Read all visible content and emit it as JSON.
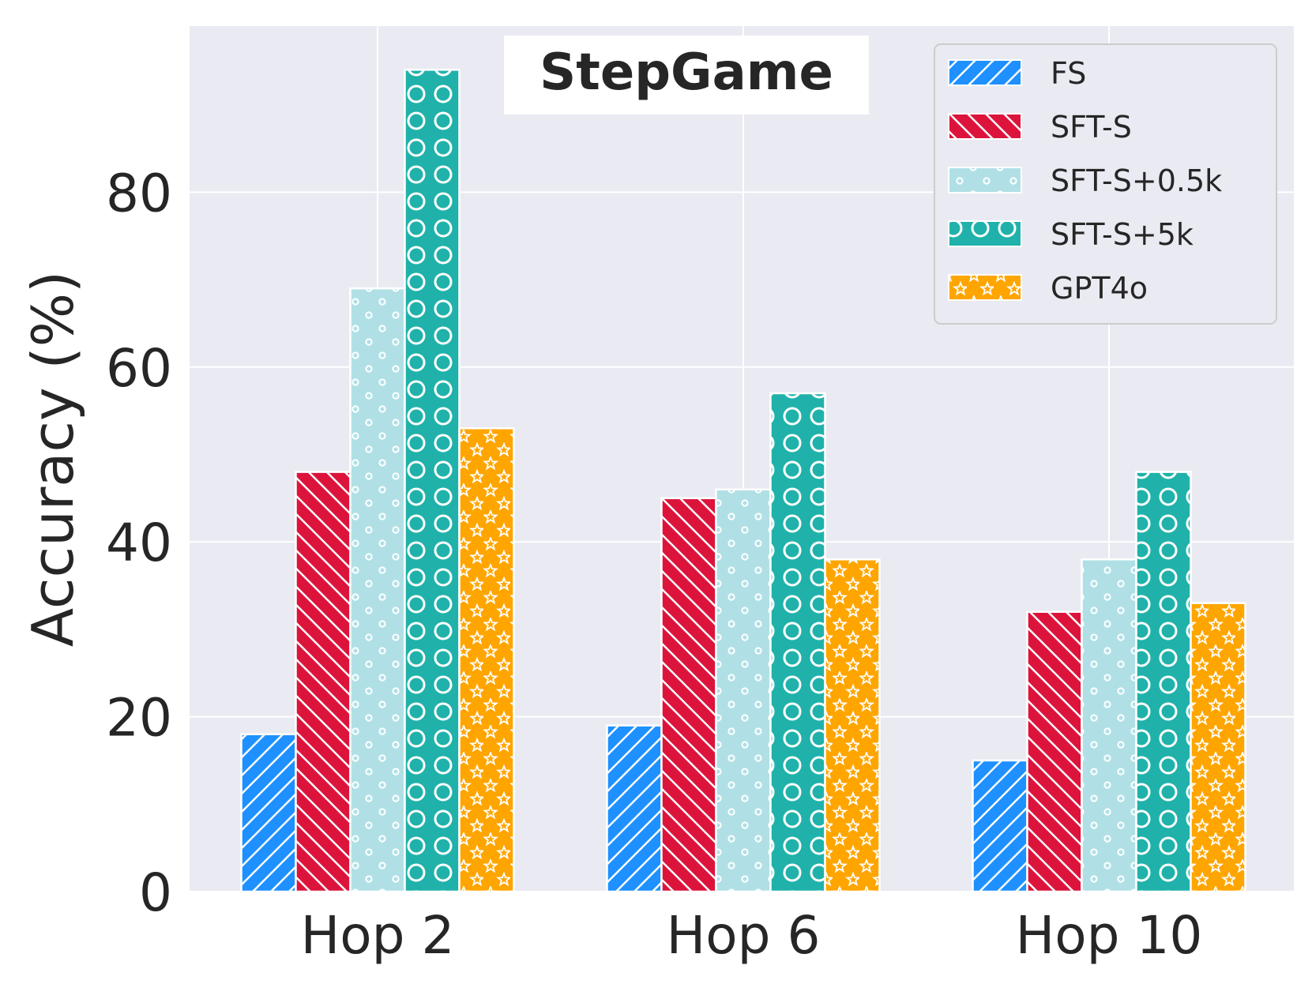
{
  "chart_data": {
    "type": "bar",
    "title": "StepGame",
    "xlabel": "",
    "ylabel": "Accuracy (%)",
    "ylim": [
      0,
      99
    ],
    "yticks": [
      0,
      20,
      40,
      60,
      80
    ],
    "grid": true,
    "legend_position": "top-right",
    "categories": [
      "Hop 2",
      "Hop 6",
      "Hop 10"
    ],
    "series": [
      {
        "name": "FS",
        "color": "#1e90ff",
        "pattern": "diagonal-forward",
        "values": [
          18,
          19,
          15
        ]
      },
      {
        "name": "SFT-S",
        "color": "#dc143c",
        "pattern": "diagonal-back",
        "values": [
          48,
          45,
          32
        ]
      },
      {
        "name": "SFT-S+0.5k",
        "color": "#b0e0e6",
        "pattern": "small-dots",
        "values": [
          69,
          46,
          38
        ]
      },
      {
        "name": "SFT-S+5k",
        "color": "#20b2aa",
        "pattern": "circles",
        "values": [
          94,
          57,
          48
        ]
      },
      {
        "name": "GPT4o",
        "color": "#ffa500",
        "pattern": "stars",
        "values": [
          53,
          38,
          33
        ]
      }
    ]
  }
}
